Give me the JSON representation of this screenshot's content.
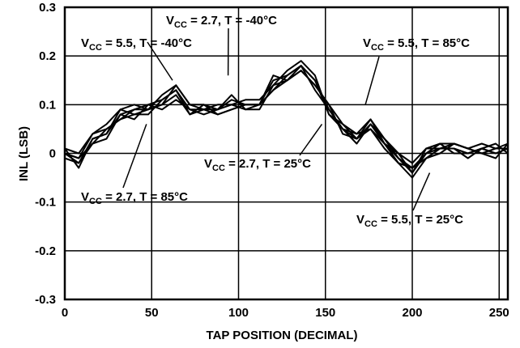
{
  "chart_data": {
    "type": "line",
    "title": "",
    "xlabel": "TAP POSITION (DECIMAL)",
    "ylabel": "INL (LSB)",
    "xlim": [
      0,
      255
    ],
    "ylim": [
      -0.3,
      0.3
    ],
    "x_ticks": [
      0,
      50,
      100,
      150,
      200,
      250
    ],
    "x_tick_labels": [
      "0",
      "50",
      "100",
      "150",
      "200",
      "250"
    ],
    "y_ticks": [
      -0.3,
      -0.2,
      -0.1,
      0,
      0.1,
      0.2,
      0.3
    ],
    "y_tick_labels": [
      "-0.3",
      "-0.2",
      "-0.1",
      "0",
      "0.1",
      "0.2",
      "0.3"
    ],
    "grid": true,
    "line_color": "#000000",
    "annotations": [
      {
        "pre": "V",
        "sub": "CC",
        "post": " = 5.5, T = -40°C"
      },
      {
        "pre": "V",
        "sub": "CC",
        "post": " = 2.7, T = -40°C"
      },
      {
        "pre": "V",
        "sub": "CC",
        "post": " = 5.5, T = 85°C"
      },
      {
        "pre": "V",
        "sub": "CC",
        "post": " = 2.7, T = 25°C"
      },
      {
        "pre": "V",
        "sub": "CC",
        "post": " = 2.7, T = 85°C"
      },
      {
        "pre": "V",
        "sub": "CC",
        "post": " = 5.5, T = 25°C"
      }
    ],
    "annotation_targets": [
      {
        "x": 62,
        "y": 0.15
      },
      {
        "x": 94,
        "y": 0.16
      },
      {
        "x": 173,
        "y": 0.1
      },
      {
        "x": 148,
        "y": 0.06
      },
      {
        "x": 47,
        "y": 0.06
      },
      {
        "x": 210,
        "y": -0.04
      }
    ],
    "series": [
      {
        "x": [
          0,
          8,
          16,
          24,
          32,
          40,
          48,
          56,
          64,
          72,
          80,
          88,
          96,
          104,
          112,
          120,
          128,
          136,
          144,
          152,
          160,
          168,
          176,
          184,
          192,
          200,
          208,
          216,
          224,
          232,
          240,
          248,
          255
        ],
        "y": [
          0.0,
          -0.02,
          0.03,
          0.04,
          0.08,
          0.09,
          0.1,
          0.11,
          0.13,
          0.09,
          0.09,
          0.08,
          0.09,
          0.1,
          0.1,
          0.15,
          0.16,
          0.18,
          0.15,
          0.09,
          0.05,
          0.03,
          0.06,
          0.02,
          -0.01,
          -0.04,
          0.0,
          0.01,
          0.01,
          0.0,
          0.01,
          0.0,
          0.01
        ]
      },
      {
        "x": [
          0,
          8,
          16,
          24,
          32,
          40,
          48,
          56,
          64,
          72,
          80,
          88,
          96,
          104,
          112,
          120,
          128,
          136,
          144,
          152,
          160,
          168,
          176,
          184,
          192,
          200,
          208,
          216,
          224,
          232,
          240,
          248,
          255
        ],
        "y": [
          0.0,
          -0.01,
          0.02,
          0.05,
          0.07,
          0.08,
          0.09,
          0.12,
          0.14,
          0.1,
          0.1,
          0.09,
          0.12,
          0.09,
          0.1,
          0.13,
          0.15,
          0.17,
          0.14,
          0.1,
          0.06,
          0.04,
          0.07,
          0.03,
          0.0,
          -0.02,
          0.01,
          0.02,
          0.02,
          0.01,
          0.02,
          0.01,
          0.01
        ]
      },
      {
        "x": [
          0,
          8,
          16,
          24,
          32,
          40,
          48,
          56,
          64,
          72,
          80,
          88,
          96,
          104,
          112,
          120,
          128,
          136,
          144,
          152,
          160,
          168,
          176,
          184,
          192,
          200,
          208,
          216,
          224,
          232,
          240,
          248,
          255
        ],
        "y": [
          0.01,
          0.0,
          0.04,
          0.06,
          0.09,
          0.1,
          0.09,
          0.1,
          0.12,
          0.08,
          0.09,
          0.1,
          0.1,
          0.11,
          0.11,
          0.14,
          0.17,
          0.19,
          0.16,
          0.08,
          0.05,
          0.04,
          0.05,
          0.02,
          -0.02,
          -0.05,
          -0.01,
          0.0,
          0.02,
          0.01,
          0.0,
          -0.01,
          0.02
        ]
      },
      {
        "x": [
          0,
          8,
          16,
          24,
          32,
          40,
          48,
          56,
          64,
          72,
          80,
          88,
          96,
          104,
          112,
          120,
          128,
          136,
          144,
          152,
          160,
          168,
          176,
          184,
          192,
          200,
          208,
          216,
          224,
          232,
          240,
          248,
          255
        ],
        "y": [
          -0.01,
          -0.02,
          0.02,
          0.03,
          0.08,
          0.07,
          0.1,
          0.09,
          0.11,
          0.09,
          0.08,
          0.09,
          0.1,
          0.09,
          0.09,
          0.14,
          0.15,
          0.17,
          0.14,
          0.1,
          0.04,
          0.03,
          0.05,
          0.01,
          -0.02,
          -0.03,
          0.0,
          0.02,
          0.0,
          0.0,
          0.01,
          0.02,
          0.0
        ]
      },
      {
        "x": [
          0,
          8,
          16,
          24,
          32,
          40,
          48,
          56,
          64,
          72,
          80,
          88,
          96,
          104,
          112,
          120,
          128,
          136,
          144,
          152,
          160,
          168,
          176,
          184,
          192,
          200,
          208,
          216,
          224,
          232,
          240,
          248,
          255
        ],
        "y": [
          0.01,
          -0.03,
          0.03,
          0.04,
          0.09,
          0.08,
          0.08,
          0.11,
          0.13,
          0.08,
          0.1,
          0.08,
          0.09,
          0.1,
          0.1,
          0.16,
          0.15,
          0.18,
          0.13,
          0.09,
          0.05,
          0.02,
          0.06,
          0.03,
          -0.01,
          -0.03,
          -0.01,
          0.01,
          0.01,
          -0.01,
          0.01,
          0.0,
          0.01
        ]
      },
      {
        "x": [
          0,
          8,
          16,
          24,
          32,
          40,
          48,
          56,
          64,
          72,
          80,
          88,
          96,
          104,
          112,
          120,
          128,
          136,
          144,
          152,
          160,
          168,
          176,
          184,
          192,
          200,
          208,
          216,
          224,
          232,
          240,
          248,
          255
        ],
        "y": [
          0.0,
          -0.01,
          0.04,
          0.05,
          0.07,
          0.09,
          0.09,
          0.1,
          0.14,
          0.1,
          0.09,
          0.09,
          0.11,
          0.1,
          0.1,
          0.13,
          0.16,
          0.18,
          0.15,
          0.08,
          0.06,
          0.03,
          0.07,
          0.02,
          0.0,
          -0.04,
          0.01,
          0.01,
          0.02,
          0.01,
          0.0,
          0.01,
          0.02
        ]
      }
    ]
  }
}
